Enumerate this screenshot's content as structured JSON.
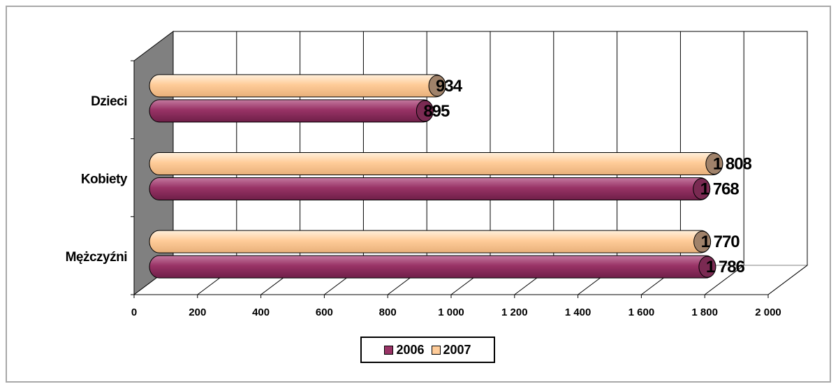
{
  "chart_data": {
    "type": "bar",
    "orientation": "horizontal",
    "style": "3d-cylinder",
    "categories": [
      "Dzieci",
      "Kobiety",
      "Mężczyźni"
    ],
    "series": [
      {
        "name": "2006",
        "color": "#993366",
        "values": [
          895,
          1768,
          1786
        ],
        "labels": [
          "895",
          "1 768",
          "1 786"
        ]
      },
      {
        "name": "2007",
        "color": "#FFCC99",
        "values": [
          934,
          1808,
          1770
        ],
        "labels": [
          "934",
          "1 808",
          "1 770"
        ]
      }
    ],
    "xlim": [
      0,
      2000
    ],
    "xticks": [
      0,
      200,
      400,
      600,
      800,
      1000,
      1200,
      1400,
      1600,
      1800,
      2000
    ],
    "xtick_labels": [
      "0",
      "200",
      "400",
      "600",
      "800",
      "1 000",
      "1 200",
      "1 400",
      "1 600",
      "1 800",
      "2 000"
    ],
    "grid": true,
    "legend": "bottom",
    "wall_color": "#808080"
  }
}
